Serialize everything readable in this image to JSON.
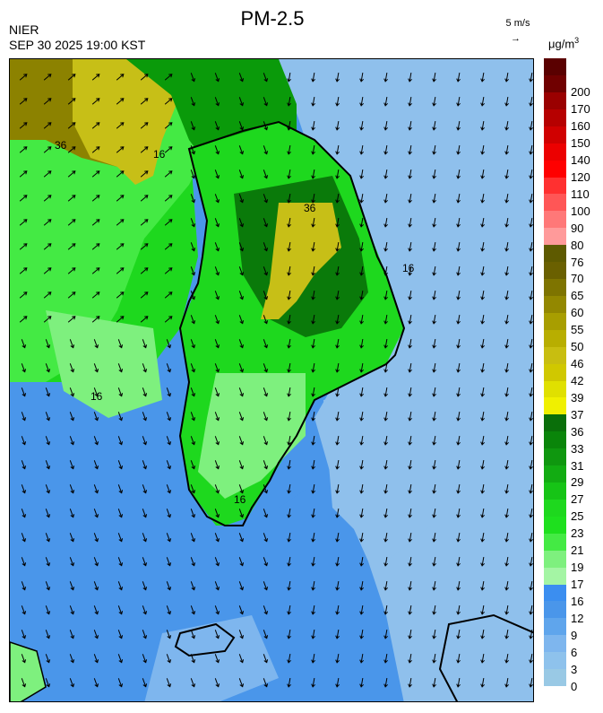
{
  "header": {
    "title": "PM-2.5",
    "agency": "NIER",
    "datetime": "SEP 30 2025 19:00 KST",
    "wind_reference": "5 m/s",
    "wind_reference_arrow": "→",
    "unit_base": "μg/m",
    "unit_exp": "3"
  },
  "map": {
    "contour_labels": [
      "36",
      "36",
      "16",
      "16",
      "16",
      "16"
    ],
    "colors": {
      "sea_blue": "#4a96ea",
      "light_blue": "#8fc0ec",
      "green_light": "#7ef07e",
      "green": "#1ed81e",
      "green_dark": "#0a9a0a",
      "green_darker": "#0a7a0a",
      "olive": "#8c8200",
      "yellow_olive": "#c7bf17",
      "land_outline": "#000000"
    }
  },
  "colorbar": {
    "segments": [
      {
        "label": "0",
        "color": "#99c9e5"
      },
      {
        "label": "3",
        "color": "#8ec2ec"
      },
      {
        "label": "6",
        "color": "#7eb6ee"
      },
      {
        "label": "9",
        "color": "#5fa5ec"
      },
      {
        "label": "12",
        "color": "#4a96ea"
      },
      {
        "label": "16",
        "color": "#3b8ef0"
      },
      {
        "label": "17",
        "color": "#a4f5a4"
      },
      {
        "label": "19",
        "color": "#7ef07e"
      },
      {
        "label": "21",
        "color": "#44ea44"
      },
      {
        "label": "23",
        "color": "#1ee01e"
      },
      {
        "label": "25",
        "color": "#1ed81e"
      },
      {
        "label": "27",
        "color": "#16c416"
      },
      {
        "label": "29",
        "color": "#12ac12"
      },
      {
        "label": "31",
        "color": "#0f970f"
      },
      {
        "label": "33",
        "color": "#0a850a"
      },
      {
        "label": "36",
        "color": "#0a6f0a"
      },
      {
        "label": "37",
        "color": "#f0f000"
      },
      {
        "label": "39",
        "color": "#e0e000"
      },
      {
        "label": "42",
        "color": "#d0c800"
      },
      {
        "label": "46",
        "color": "#c8be10"
      },
      {
        "label": "50",
        "color": "#b8ae00"
      },
      {
        "label": "55",
        "color": "#a89e00"
      },
      {
        "label": "60",
        "color": "#938800"
      },
      {
        "label": "65",
        "color": "#7e7400"
      },
      {
        "label": "70",
        "color": "#6a6000"
      },
      {
        "label": "76",
        "color": "#5e5a00"
      },
      {
        "label": "80",
        "color": "#ff9a9a"
      },
      {
        "label": "90",
        "color": "#ff7878"
      },
      {
        "label": "100",
        "color": "#ff5656"
      },
      {
        "label": "110",
        "color": "#ff3030"
      },
      {
        "label": "120",
        "color": "#ff0000"
      },
      {
        "label": "140",
        "color": "#ec0000"
      },
      {
        "label": "150",
        "color": "#d00000"
      },
      {
        "label": "160",
        "color": "#b60000"
      },
      {
        "label": "170",
        "color": "#9a0000"
      },
      {
        "label": "200",
        "color": "#700000"
      },
      {
        "label": "",
        "color": "#5a0000"
      }
    ]
  }
}
